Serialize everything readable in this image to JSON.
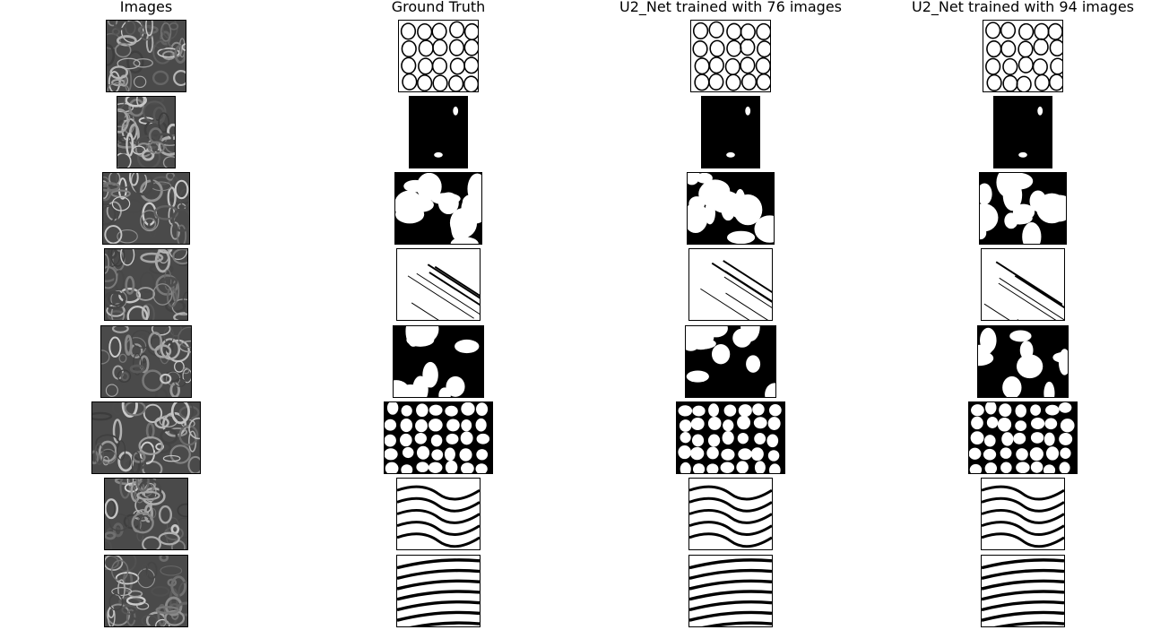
{
  "figure": {
    "columns": [
      {
        "title": "Images",
        "kind": "sem"
      },
      {
        "title": "Ground Truth",
        "kind": "mask"
      },
      {
        "title": "U2_Net trained with 76 images",
        "kind": "mask"
      },
      {
        "title": "U2_Net trained with 94 images",
        "kind": "mask"
      }
    ],
    "rows": [
      {
        "pattern": "cells-outline"
      },
      {
        "pattern": "dark-pores"
      },
      {
        "pattern": "large-holes"
      },
      {
        "pattern": "fibers-lines"
      },
      {
        "pattern": "large-holes-round"
      },
      {
        "pattern": "dense-cells"
      },
      {
        "pattern": "wavy-cells"
      },
      {
        "pattern": "elongated-cells"
      }
    ]
  }
}
